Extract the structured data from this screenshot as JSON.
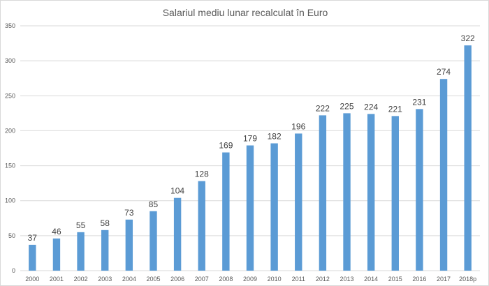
{
  "chart_data": {
    "type": "bar",
    "title": "Salariul mediu lunar recalculat în Euro",
    "xlabel": "",
    "ylabel": "",
    "categories": [
      "2000",
      "2001",
      "2002",
      "2003",
      "2004",
      "2005",
      "2006",
      "2007",
      "2008",
      "2009",
      "2010",
      "2011",
      "2012",
      "2013",
      "2014",
      "2015",
      "2016",
      "2017",
      "2018p"
    ],
    "values": [
      37,
      46,
      55,
      58,
      73,
      85,
      104,
      128,
      169,
      179,
      182,
      196,
      222,
      225,
      224,
      221,
      231,
      274,
      322
    ],
    "ylim": [
      0,
      350
    ],
    "yticks": [
      0,
      50,
      100,
      150,
      200,
      250,
      300,
      350
    ],
    "grid": true,
    "legend": "none",
    "bar_color": "#5b9bd5",
    "grid_color": "#d9d9d9",
    "axis_text_color": "#595959",
    "data_label_color": "#404040"
  }
}
